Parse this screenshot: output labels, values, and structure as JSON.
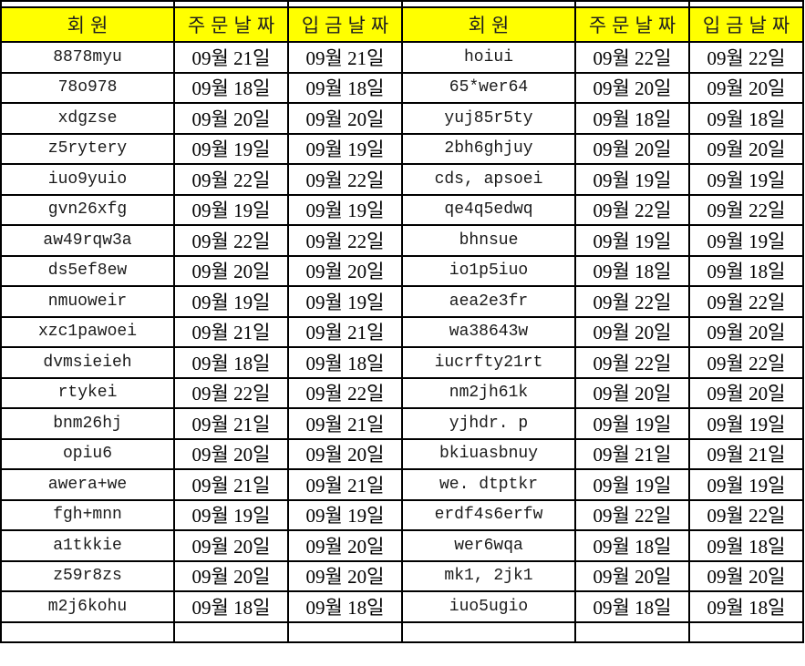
{
  "colors": {
    "header_bg": "#ffff00",
    "border": "#000000",
    "text": "#000000",
    "background": "#ffffff"
  },
  "table": {
    "headers": [
      "회원",
      "주문날짜",
      "입금날짜",
      "회원",
      "주문날짜",
      "입금날짜"
    ],
    "rows": [
      [
        "8878myu",
        "09월 21일",
        "09월 21일",
        "hoiui",
        "09월 22일",
        "09월 22일"
      ],
      [
        "78o978",
        "09월 18일",
        "09월 18일",
        "65*wer64",
        "09월 20일",
        "09월 20일"
      ],
      [
        "xdgzse",
        "09월 20일",
        "09월 20일",
        "yuj85r5ty",
        "09월 18일",
        "09월 18일"
      ],
      [
        "z5rytery",
        "09월 19일",
        "09월 19일",
        "2bh6ghjuy",
        "09월 20일",
        "09월 20일"
      ],
      [
        "iuo9yuio",
        "09월 22일",
        "09월 22일",
        "cds, apsoei",
        "09월 19일",
        "09월 19일"
      ],
      [
        "gvn26xfg",
        "09월 19일",
        "09월 19일",
        "qe4q5edwq",
        "09월 22일",
        "09월 22일"
      ],
      [
        "aw49rqw3a",
        "09월 22일",
        "09월 22일",
        "bhnsue",
        "09월 19일",
        "09월 19일"
      ],
      [
        "ds5ef8ew",
        "09월 20일",
        "09월 20일",
        "io1p5iuo",
        "09월 18일",
        "09월 18일"
      ],
      [
        "nmuoweir",
        "09월 19일",
        "09월 19일",
        "aea2e3fr",
        "09월 22일",
        "09월 22일"
      ],
      [
        "xzc1pawoei",
        "09월 21일",
        "09월 21일",
        "wa38643w",
        "09월 20일",
        "09월 20일"
      ],
      [
        "dvmsieieh",
        "09월 18일",
        "09월 18일",
        "iucrfty21rt",
        "09월 22일",
        "09월 22일"
      ],
      [
        "rtykei",
        "09월 22일",
        "09월 22일",
        "nm2jh61k",
        "09월 20일",
        "09월 20일"
      ],
      [
        "bnm26hj",
        "09월 21일",
        "09월 21일",
        "yjhdr. p",
        "09월 19일",
        "09월 19일"
      ],
      [
        "opiu6",
        "09월 20일",
        "09월 20일",
        "bkiuasbnuy",
        "09월 21일",
        "09월 21일"
      ],
      [
        "awera+we",
        "09월 21일",
        "09월 21일",
        "we. dtptkr",
        "09월 19일",
        "09월 19일"
      ],
      [
        "fgh+mnn",
        "09월 19일",
        "09월 19일",
        "erdf4s6erfw",
        "09월 22일",
        "09월 22일"
      ],
      [
        "a1tkkie",
        "09월 20일",
        "09월 20일",
        "wer6wqa",
        "09월 18일",
        "09월 18일"
      ],
      [
        "z59r8zs",
        "09월 20일",
        "09월 20일",
        "mk1, 2jk1",
        "09월 20일",
        "09월 20일"
      ],
      [
        "m2j6kohu",
        "09월 18일",
        "09월 18일",
        "iuo5ugio",
        "09월 18일",
        "09월 18일"
      ]
    ]
  }
}
